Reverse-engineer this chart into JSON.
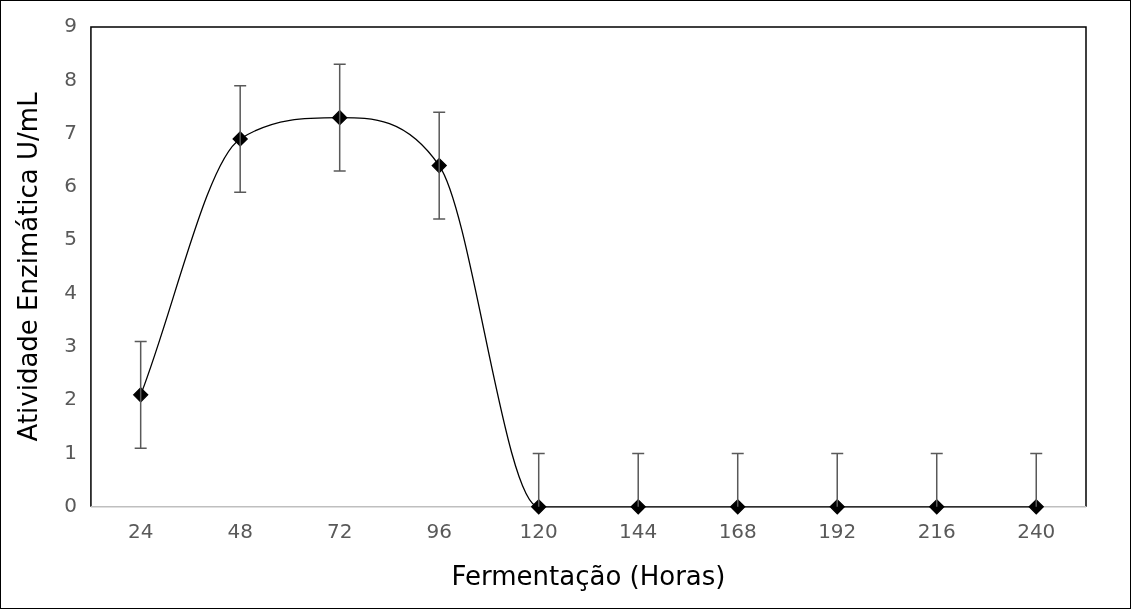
{
  "chart_data": {
    "type": "line",
    "xlabel": "Fermentação (Horas)",
    "ylabel": "Atividade Enzimática U/mL",
    "categories": [
      "24",
      "48",
      "72",
      "96",
      "120",
      "144",
      "168",
      "192",
      "216",
      "240"
    ],
    "series": [
      {
        "color": "#000000",
        "values": [
          2.1,
          6.9,
          7.3,
          6.4,
          0,
          0,
          0,
          0,
          0,
          0
        ],
        "errors": [
          1,
          1,
          1,
          1,
          [
            0,
            1
          ],
          [
            0,
            1
          ],
          [
            0,
            1
          ],
          [
            0,
            1
          ],
          [
            0,
            1
          ],
          [
            0,
            1
          ]
        ]
      }
    ],
    "ylim": [
      0,
      9
    ],
    "yticks": [
      0,
      1,
      2,
      3,
      4,
      5,
      6,
      7,
      8,
      9
    ],
    "grid": false,
    "legend": false,
    "marker": "diamond",
    "line_style": "solid"
  }
}
